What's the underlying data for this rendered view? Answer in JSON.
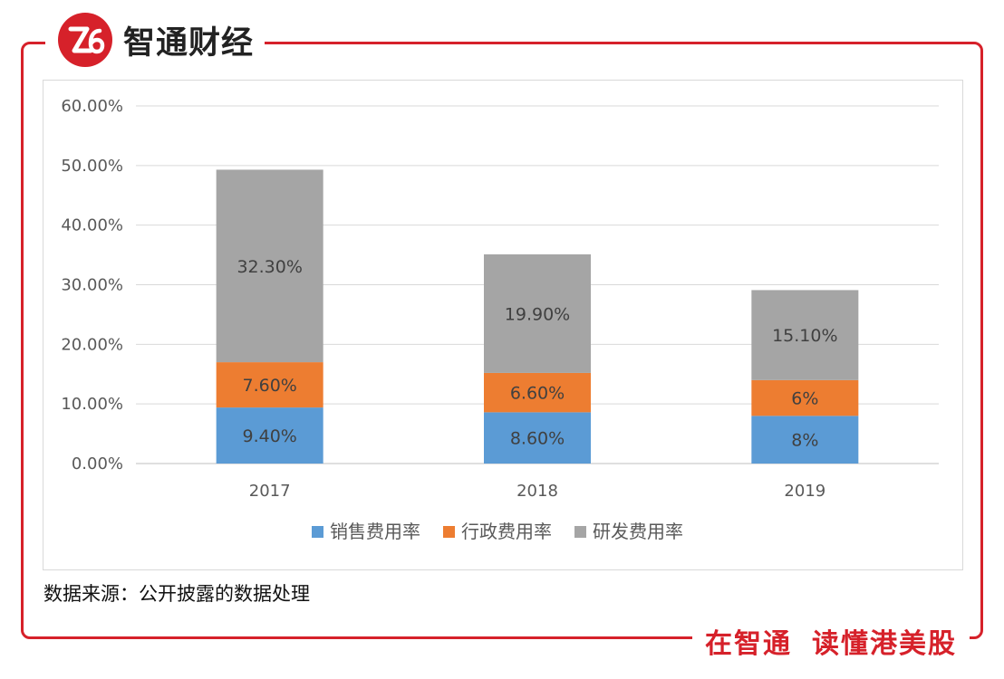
{
  "brand": {
    "name": "智通财经",
    "logo": "zhitong-logo"
  },
  "slogan": {
    "part1": "在智通",
    "part2": "读懂港美股"
  },
  "source_note": "数据来源：公开披露的数据处理",
  "colors": {
    "accent": "#d6212a",
    "sales": "#5b9bd5",
    "admin": "#ed7d31",
    "rnd": "#a5a5a5"
  },
  "chart_data": {
    "type": "bar",
    "stacked": true,
    "title": "",
    "xlabel": "",
    "ylabel": "",
    "categories": [
      "2017",
      "2018",
      "2019"
    ],
    "ylim": [
      0,
      60
    ],
    "yticks": [
      "0.00%",
      "10.00%",
      "20.00%",
      "30.00%",
      "40.00%",
      "50.00%",
      "60.00%"
    ],
    "grid": true,
    "legend_position": "bottom",
    "series": [
      {
        "name": "销售费用率",
        "color": "#5b9bd5",
        "values": [
          9.4,
          8.6,
          8.0
        ],
        "labels": [
          "9.40%",
          "8.60%",
          "8%"
        ]
      },
      {
        "name": "行政费用率",
        "color": "#ed7d31",
        "values": [
          7.6,
          6.6,
          6.0
        ],
        "labels": [
          "7.60%",
          "6.60%",
          "6%"
        ]
      },
      {
        "name": "研发费用率",
        "color": "#a5a5a5",
        "values": [
          32.3,
          19.9,
          15.1
        ],
        "labels": [
          "32.30%",
          "19.90%",
          "15.10%"
        ]
      }
    ]
  }
}
